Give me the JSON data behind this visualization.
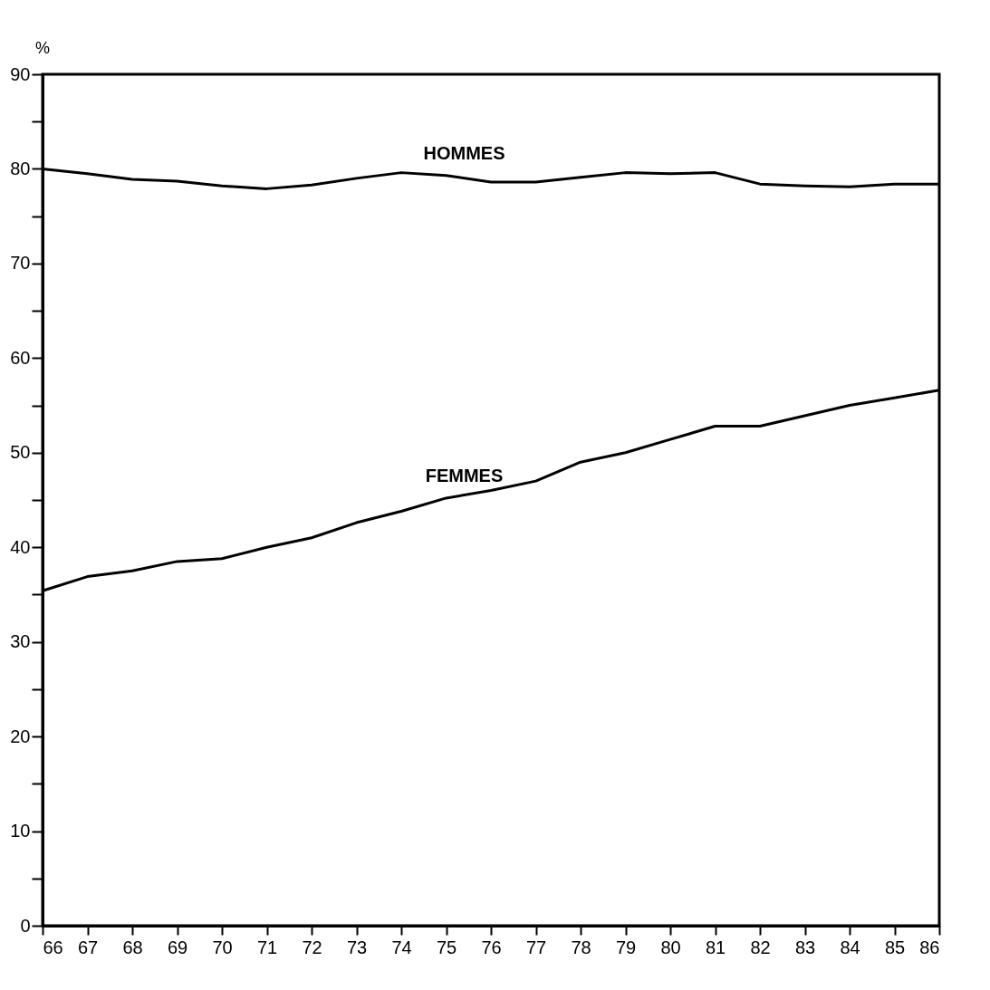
{
  "chart_data": {
    "type": "line",
    "ylabel": "%",
    "x": [
      66,
      67,
      68,
      69,
      70,
      71,
      72,
      73,
      74,
      75,
      76,
      77,
      78,
      79,
      80,
      81,
      82,
      83,
      84,
      85,
      86
    ],
    "series": [
      {
        "name": "HOMMES",
        "color": "#000000",
        "values": [
          80,
          79.5,
          78.9,
          78.7,
          78.2,
          77.9,
          78.3,
          79,
          79.6,
          79.3,
          78.6,
          78.6,
          79.1,
          79.6,
          79.5,
          79.6,
          78.4,
          78.2,
          78.1,
          78.4,
          78.4
        ]
      },
      {
        "name": "FEMMES",
        "color": "#000000",
        "values": [
          35.4,
          36.9,
          37.5,
          38.5,
          38.8,
          40,
          41,
          42.6,
          43.8,
          45.2,
          46,
          47,
          49,
          50,
          51.4,
          52.8,
          52.8,
          53.9,
          55,
          55.8,
          56.6
        ]
      }
    ],
    "xlim": [
      66,
      86
    ],
    "xticks": [
      66,
      67,
      68,
      69,
      70,
      71,
      72,
      73,
      74,
      75,
      76,
      77,
      78,
      79,
      80,
      81,
      82,
      83,
      84,
      85,
      86
    ],
    "ylim": [
      0,
      90
    ],
    "yticks": [
      0,
      {
        "value": 5,
        "label": null
      },
      10,
      {
        "value": 15,
        "label": null
      },
      20,
      {
        "value": 25,
        "label": null
      },
      30,
      {
        "value": 35,
        "label": null
      },
      40,
      {
        "value": 45,
        "label": null
      },
      50,
      {
        "value": 55,
        "label": null
      },
      60,
      {
        "value": 65,
        "label": null
      },
      70,
      {
        "value": 75,
        "label": null
      },
      80,
      {
        "value": 85,
        "label": null
      },
      90
    ],
    "grid": false,
    "marker": "none",
    "line_style": "solid"
  }
}
